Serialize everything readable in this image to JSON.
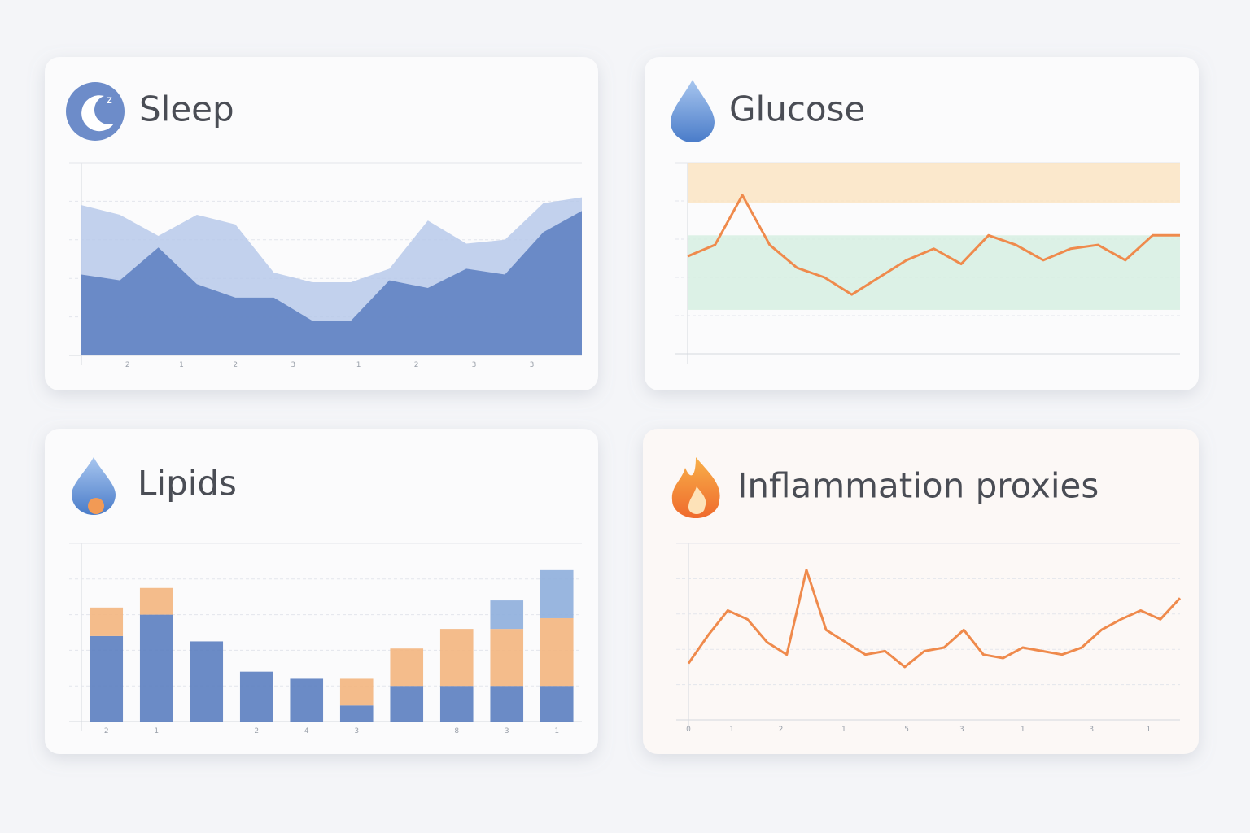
{
  "chart_data": [
    {
      "type": "area",
      "title": "Sleep",
      "ylim": [
        0,
        100
      ],
      "xlim": [
        0,
        13
      ],
      "x": [
        0,
        1,
        2,
        3,
        4,
        5,
        6,
        7,
        8,
        9,
        10,
        11,
        12,
        13
      ],
      "xticks": [
        {
          "value": 1.2,
          "label": "2"
        },
        {
          "value": 2.6,
          "label": "1"
        },
        {
          "value": 4.0,
          "label": "2"
        },
        {
          "value": 5.5,
          "label": "3"
        },
        {
          "value": 7.2,
          "label": "1"
        },
        {
          "value": 8.7,
          "label": "2"
        },
        {
          "value": 10.2,
          "label": "3"
        },
        {
          "value": 11.7,
          "label": "3"
        }
      ],
      "series": [
        {
          "color": "#b7c9ea",
          "values": [
            78,
            73,
            62,
            73,
            68,
            43,
            38,
            38,
            45,
            70,
            58,
            60,
            79,
            82
          ]
        },
        {
          "color": "#5b7ec0",
          "values": [
            42,
            39,
            56,
            37,
            30,
            30,
            18,
            18,
            39,
            35,
            45,
            42,
            64,
            75
          ]
        }
      ]
    },
    {
      "type": "line",
      "title": "Glucose",
      "ylim": [
        0,
        100
      ],
      "xlim": [
        0,
        18
      ],
      "x": [
        0,
        1,
        2,
        3,
        4,
        5,
        6,
        7,
        8,
        9,
        10,
        11,
        12,
        13,
        14,
        15,
        16,
        17,
        18
      ],
      "bands": [
        {
          "from": 79,
          "to": 100,
          "color": "#fbe3bf"
        },
        {
          "from": 23,
          "to": 62,
          "color": "#d5efe0"
        }
      ],
      "series": [
        {
          "color": "#ef8a4c",
          "values": [
            51,
            57,
            83,
            57,
            45,
            40,
            31,
            40,
            49,
            55,
            47,
            62,
            57,
            49,
            55,
            57,
            49,
            62,
            62
          ]
        }
      ]
    },
    {
      "type": "bar",
      "title": "Lipids",
      "ylim": [
        0,
        100
      ],
      "categories": [
        "2",
        "1",
        null,
        "2",
        "4",
        "3",
        null,
        "8",
        "3",
        "1"
      ],
      "series": [
        {
          "color": "#5b7ec0",
          "values": [
            48,
            60,
            45,
            28,
            24,
            9,
            20,
            20,
            20,
            20
          ]
        },
        {
          "color": "#f3b57e",
          "values": [
            16,
            15,
            0,
            0,
            0,
            15,
            21,
            32,
            32,
            38
          ]
        },
        {
          "color": "#8eaedc",
          "values": [
            0,
            0,
            0,
            0,
            0,
            0,
            0,
            0,
            16,
            27
          ]
        }
      ]
    },
    {
      "type": "line",
      "title": "Inflammation proxies",
      "ylim": [
        0,
        100
      ],
      "xlim": [
        0,
        25
      ],
      "x": [
        0,
        1,
        2,
        3,
        4,
        5,
        6,
        7,
        8,
        9,
        10,
        11,
        12,
        13,
        14,
        15,
        16,
        17,
        18,
        19,
        20,
        21,
        22,
        23,
        24,
        25
      ],
      "xticks": [
        {
          "value": 0,
          "label": "0"
        },
        {
          "value": 2.2,
          "label": "1"
        },
        {
          "value": 4.7,
          "label": "2"
        },
        {
          "value": 7.9,
          "label": "1"
        },
        {
          "value": 11.1,
          "label": "5"
        },
        {
          "value": 13.9,
          "label": "3"
        },
        {
          "value": 17.0,
          "label": "1"
        },
        {
          "value": 20.5,
          "label": "3"
        },
        {
          "value": 23.4,
          "label": "1"
        }
      ],
      "series": [
        {
          "color": "#ef8a4c",
          "values": [
            32,
            48,
            62,
            57,
            44,
            37,
            85,
            51,
            44,
            37,
            39,
            30,
            39,
            41,
            51,
            37,
            35,
            41,
            39,
            37,
            41,
            51,
            57,
            62,
            57,
            69
          ]
        }
      ]
    }
  ]
}
